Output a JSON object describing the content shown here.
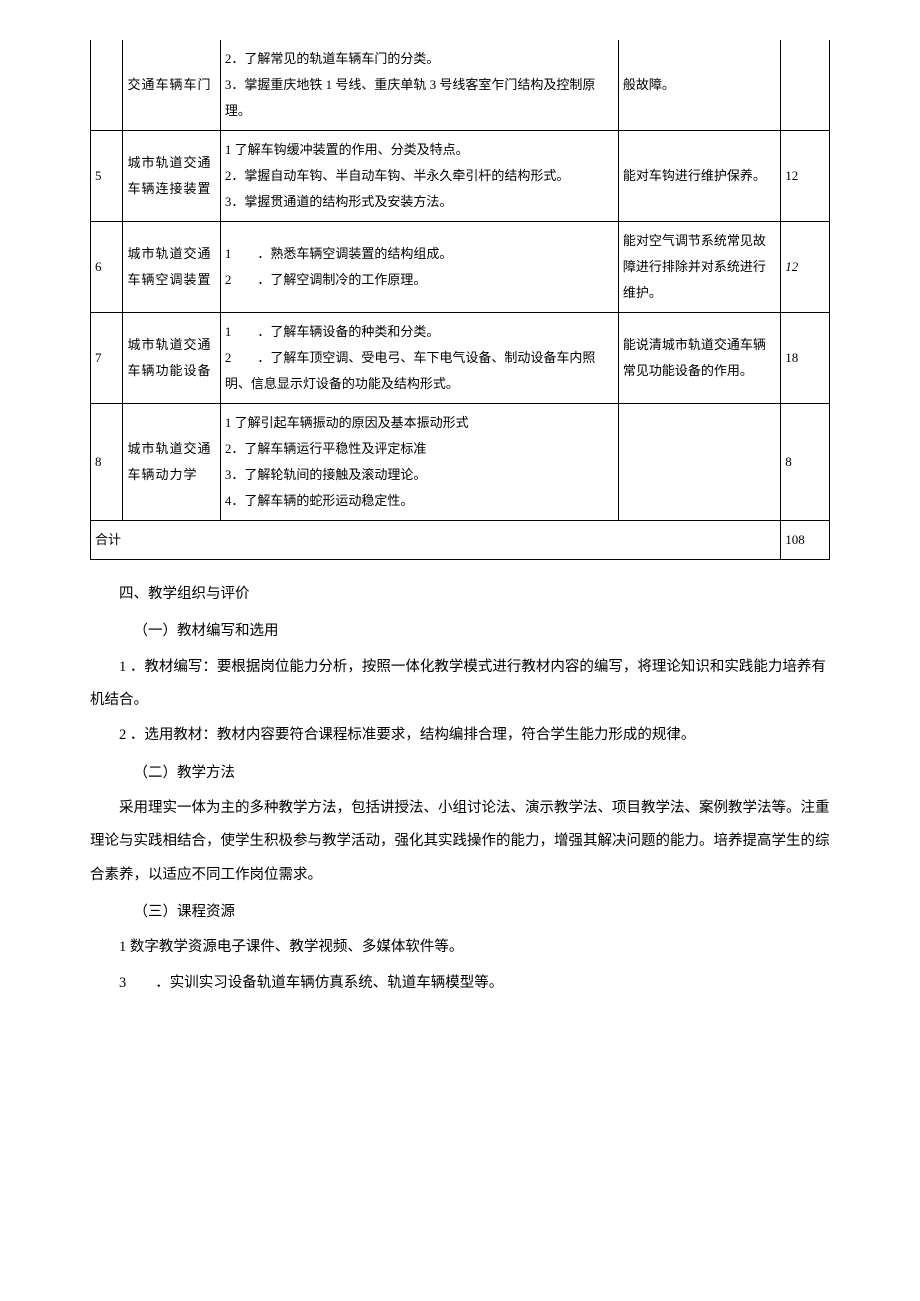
{
  "table": {
    "rows": [
      {
        "idx": "",
        "name": "交通车辆车门",
        "knowledge": "2．了解常见的轨道车辆车门的分类。\n3．掌握重庆地铁 1 号线、重庆单轨 3 号线客室乍门结构及控制原理。",
        "skill": "般故障。",
        "hours": ""
      },
      {
        "idx": "5",
        "name": "城市轨道交通车辆连接装置",
        "knowledge": "1 了解车钩缓冲装置的作用、分类及特点。\n2．掌握自动车钩、半自动车钩、半永久牵引杆的结构形式。\n3．掌握贯通道的结构形式及安装方法。",
        "skill": "能对车钩进行维护保养。",
        "hours": "12"
      },
      {
        "idx": "6",
        "name": "城市轨道交通车辆空调装置",
        "knowledge": "1　　．熟悉车辆空调装置的结构组成。\n2　　．了解空调制冷的工作原理。",
        "skill": "能对空气调节系统常见故障进行排除并对系统进行维护。",
        "hours": "12",
        "hours_italic": true
      },
      {
        "idx": "7",
        "name": "城市轨道交通车辆功能设备",
        "knowledge": "1　　．了解车辆设备的种类和分类。\n2　　．了解车顶空调、受电弓、车下电气设备、制动设备车内照明、信息显示灯设备的功能及结构形式。",
        "skill": "能说清城市轨道交通车辆常见功能设备的作用。",
        "hours": "18"
      },
      {
        "idx": "8",
        "name": "城市轨道交通车辆动力学",
        "knowledge": "1 了解引起车辆振动的原因及基本振动形式\n2．了解车辆运行平稳性及评定标准\n3．了解轮轨间的接触及滚动理论。\n4．了解车辆的蛇形运动稳定性。",
        "skill": "",
        "hours": "8"
      }
    ],
    "sum_label": "合计",
    "sum_hours": "108"
  },
  "body": {
    "sec4_title": "四、教学组织与评价",
    "sub1": "（一）教材编写和选用",
    "item1_1": "1 ．教材编写：要根据岗位能力分析，按照一体化教学模式进行教材内容的编写，将理论知识和实践能力培养有机结合。",
    "item1_2": "2 ．选用教材：教材内容要符合课程标准要求，结构编排合理，符合学生能力形成的规律。",
    "sub2": "（二）教学方法",
    "para2": "采用理实一体为主的多种教学方法，包括讲授法、小组讨论法、演示教学法、项目教学法、案例教学法等。注重理论与实践相结合，使学生积极参与教学活动，强化其实践操作的能力，增强其解决问题的能力。培养提高学生的综合素养，以适应不同工作岗位需求。",
    "sub3": "（三）课程资源",
    "item3_1": "1 数字教学资源电子课件、教学视频、多媒体软件等。",
    "item3_2": "3　　．实训实习设备轨道车辆仿真系统、轨道车辆模型等。"
  }
}
